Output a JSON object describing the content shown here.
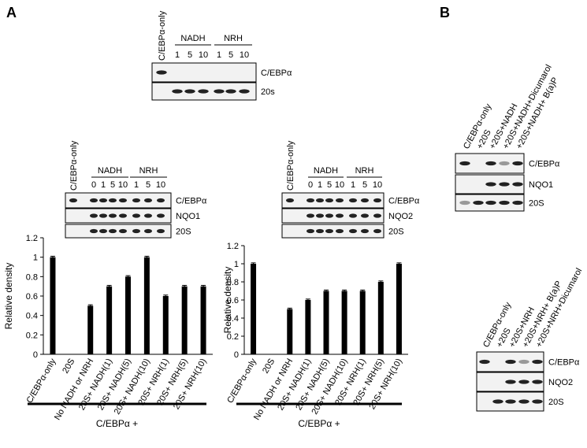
{
  "panel_labels": [
    "A",
    "B"
  ],
  "blots": [
    {
      "columns": [
        "C/EBPα-only"
      ],
      "groups": [
        {
          "name": "NADH",
          "lanes": [
            "1",
            "5",
            "10"
          ]
        },
        {
          "name": "NRH",
          "lanes": [
            "1",
            "5",
            "10"
          ]
        }
      ],
      "rows": [
        "C/EBPα",
        "20s"
      ]
    },
    {
      "columns": [
        "C/EBPα-only"
      ],
      "groups": [
        {
          "name": "NADH",
          "lanes": [
            "0",
            "1",
            "5",
            "10"
          ]
        },
        {
          "name": "NRH",
          "lanes": [
            "1",
            "5",
            "10"
          ]
        }
      ],
      "rows": [
        "C/EBPα",
        "NQO1",
        "20S"
      ]
    },
    {
      "columns": [
        "C/EBPα-only"
      ],
      "groups": [
        {
          "name": "NADH",
          "lanes": [
            "0",
            "1",
            "5",
            "10"
          ]
        },
        {
          "name": "NRH",
          "lanes": [
            "1",
            "5",
            "10"
          ]
        }
      ],
      "rows": [
        "C/EBPα",
        "NQO2",
        "20S"
      ]
    },
    {
      "columns": [
        "C/EBPα-only",
        "+20S",
        "+20S+NADH",
        "+20S+NADH+Dicumarol",
        "+20S+NADH+ B(a)P"
      ],
      "groups": [],
      "rows": [
        "C/EBPα",
        "NQO1",
        "20S"
      ]
    },
    {
      "columns": [
        "C/EBPα-only",
        "+20S",
        "+20S+NRH",
        "+20S+NRH+ B(a)P",
        "+20S+NRH+Dicumarol"
      ],
      "groups": [],
      "rows": [
        "C/EBPα",
        "NQO2",
        "20S"
      ]
    }
  ],
  "chart_data": [
    {
      "type": "bar",
      "y_label": "Relative density",
      "group_label": "C/EBPα +",
      "color": "#000000",
      "categories": [
        "C/EBPα-only",
        "20S",
        "No NADH or NRH",
        "20S+ NADH(1)",
        "20S+ NADH(5)",
        "20S+ NADH(10)",
        "20S+ NRH(1)",
        "20S+ NRH(5)",
        "20S+ NRH(10)"
      ],
      "values": [
        1,
        0,
        0.5,
        0.7,
        0.8,
        1,
        0.6,
        0.7,
        0.7
      ],
      "errors": [
        0.01,
        null,
        0.01,
        0.01,
        0.01,
        0.01,
        0.01,
        0.01,
        0.01
      ],
      "ylim": [
        0,
        1.2
      ],
      "yticks": [
        0,
        0.2,
        0.4,
        0.6,
        0.8,
        1,
        1.2
      ]
    },
    {
      "type": "bar",
      "y_label": "Relative density",
      "group_label": "C/EBPα +",
      "color": "#000000",
      "categories": [
        "C/EBPα-only",
        "20S",
        "No NADH or NRH",
        "20S+ NADH(1)",
        "20S+ NADH(5)",
        "20S+ NADH(10)",
        "20S+ NRH(1)",
        "20S+ NRH(5)",
        "20S+ NRH(10)"
      ],
      "values": [
        1,
        0,
        0.5,
        0.6,
        0.7,
        0.7,
        0.7,
        0.8,
        1
      ],
      "errors": [
        0.01,
        null,
        0.01,
        0.01,
        0.01,
        0.01,
        0.01,
        0.01,
        0.01
      ],
      "ylim": [
        0,
        1.2
      ],
      "yticks": [
        0,
        0.2,
        0.4,
        0.6,
        0.8,
        1,
        1.2
      ]
    }
  ]
}
